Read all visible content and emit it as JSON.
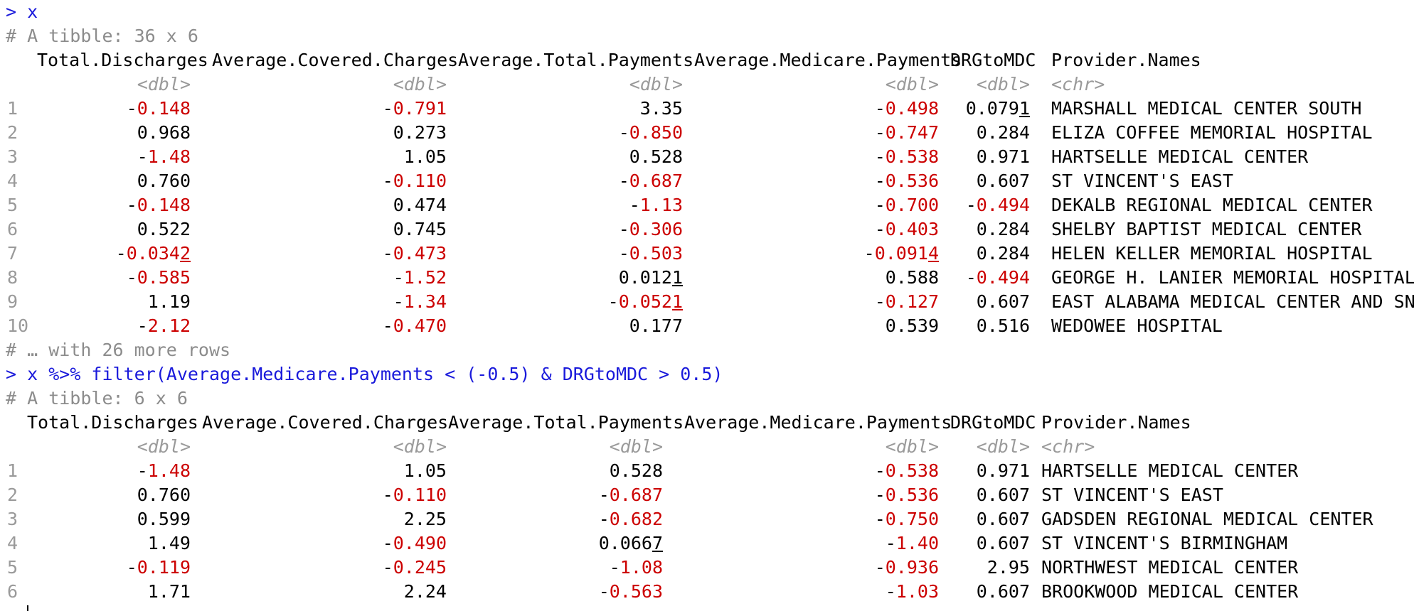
{
  "console": {
    "prompt": ">",
    "command1": "x",
    "tibble1_header": "# A tibble: 36 x 6",
    "columns": [
      "Total.Discharges",
      "Average.Covered.Charges",
      "Average.Total.Payments",
      "Average.Medicare.Payments",
      "DRGtoMDC",
      "Provider.Names"
    ],
    "types": [
      "<dbl>",
      "<dbl>",
      "<dbl>",
      "<dbl>",
      "<dbl>",
      "<chr>"
    ],
    "table1_rows": [
      {
        "idx": "1",
        "c1": "-0.148",
        "c2": "-0.791",
        "c3": "3.35",
        "c4": "-0.498",
        "c5": "0.0791",
        "name": "MARSHALL MEDICAL CENTER SOUTH"
      },
      {
        "idx": "2",
        "c1": "0.968",
        "c2": "0.273",
        "c3": "-0.850",
        "c4": "-0.747",
        "c5": "0.284",
        "name": "ELIZA COFFEE MEMORIAL HOSPITAL"
      },
      {
        "idx": "3",
        "c1": "-1.48",
        "c2": "1.05",
        "c3": "0.528",
        "c4": "-0.538",
        "c5": "0.971",
        "name": "HARTSELLE MEDICAL CENTER"
      },
      {
        "idx": "4",
        "c1": "0.760",
        "c2": "-0.110",
        "c3": "-0.687",
        "c4": "-0.536",
        "c5": "0.607",
        "name": "ST VINCENT'S EAST"
      },
      {
        "idx": "5",
        "c1": "-0.148",
        "c2": "0.474",
        "c3": "-1.13",
        "c4": "-0.700",
        "c5": "-0.494",
        "name": "DEKALB REGIONAL MEDICAL CENTER"
      },
      {
        "idx": "6",
        "c1": "0.522",
        "c2": "0.745",
        "c3": "-0.306",
        "c4": "-0.403",
        "c5": "0.284",
        "name": "SHELBY BAPTIST MEDICAL CENTER"
      },
      {
        "idx": "7",
        "c1": "-0.0342",
        "c2": "-0.473",
        "c3": "-0.503",
        "c4": "-0.0914",
        "c5": "0.284",
        "name": "HELEN KELLER MEMORIAL HOSPITAL"
      },
      {
        "idx": "8",
        "c1": "-0.585",
        "c2": "-1.52",
        "c3": "0.0121",
        "c4": "0.588",
        "c5": "-0.494",
        "name": "GEORGE H. LANIER MEMORIAL HOSPITAL"
      },
      {
        "idx": "9",
        "c1": "1.19",
        "c2": "-1.34",
        "c3": "-0.0521",
        "c4": "-0.127",
        "c5": "0.607",
        "name": "EAST ALABAMA MEDICAL CENTER AND SNF"
      },
      {
        "idx": "10",
        "c1": "-2.12",
        "c2": "-0.470",
        "c3": "0.177",
        "c4": "0.539",
        "c5": "0.516",
        "name": "WEDOWEE HOSPITAL"
      }
    ],
    "more_rows": "# … with 26 more rows",
    "command2": "x %>% filter(Average.Medicare.Payments < (-0.5) & DRGtoMDC > 0.5)",
    "tibble2_header": "# A tibble: 6 x 6",
    "table2_rows": [
      {
        "idx": "1",
        "c1": "-1.48",
        "c2": "1.05",
        "c3": "0.528",
        "c4": "-0.538",
        "c5": "0.971",
        "name": "HARTSELLE MEDICAL CENTER"
      },
      {
        "idx": "2",
        "c1": "0.760",
        "c2": "-0.110",
        "c3": "-0.687",
        "c4": "-0.536",
        "c5": "0.607",
        "name": "ST VINCENT'S EAST"
      },
      {
        "idx": "3",
        "c1": "0.599",
        "c2": "2.25",
        "c3": "-0.682",
        "c4": "-0.750",
        "c5": "0.607",
        "name": "GADSDEN REGIONAL MEDICAL CENTER"
      },
      {
        "idx": "4",
        "c1": "1.49",
        "c2": "-0.490",
        "c3": "0.0667",
        "c4": "-1.40",
        "c5": "0.607",
        "name": "ST VINCENT'S BIRMINGHAM"
      },
      {
        "idx": "5",
        "c1": "-0.119",
        "c2": "-0.245",
        "c3": "-1.08",
        "c4": "-0.936",
        "c5": "2.95",
        "name": "NORTHWEST MEDICAL CENTER"
      },
      {
        "idx": "6",
        "c1": "1.71",
        "c2": "2.24",
        "c3": "-0.563",
        "c4": "-1.03",
        "c5": "0.607",
        "name": "BROOKWOOD MEDICAL CENTER"
      }
    ],
    "colors": {
      "command": "#1a1adb",
      "negative": "#cc0000",
      "muted": "#9a9a9a"
    }
  }
}
